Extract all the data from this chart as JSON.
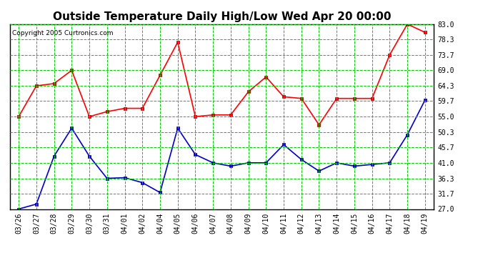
{
  "title": "Outside Temperature Daily High/Low Wed Apr 20 00:00",
  "copyright": "Copyright 2005 Curtronics.com",
  "x_labels": [
    "03/26",
    "03/27",
    "03/28",
    "03/29",
    "03/30",
    "03/31",
    "04/01",
    "04/02",
    "04/04",
    "04/05",
    "04/06",
    "04/07",
    "04/08",
    "04/09",
    "04/10",
    "04/11",
    "04/12",
    "04/13",
    "04/14",
    "04/15",
    "04/16",
    "04/17",
    "04/18",
    "04/19"
  ],
  "high_values": [
    55.0,
    64.3,
    65.0,
    69.0,
    55.0,
    56.5,
    57.5,
    57.5,
    67.5,
    77.5,
    55.0,
    55.5,
    55.5,
    62.5,
    67.0,
    61.0,
    60.5,
    52.5,
    60.5,
    60.5,
    60.5,
    73.7,
    83.0,
    80.5
  ],
  "low_values": [
    27.0,
    28.5,
    43.0,
    51.5,
    43.0,
    36.3,
    36.5,
    35.0,
    32.0,
    51.5,
    43.5,
    41.0,
    40.0,
    41.0,
    41.0,
    46.5,
    42.0,
    38.5,
    41.0,
    40.0,
    40.5,
    41.0,
    49.5,
    60.0
  ],
  "high_color": "#ff0000",
  "low_color": "#0000cc",
  "bg_color": "#ffffff",
  "plot_bg_color": "#ffffff",
  "grid_color": "#00cc00",
  "yticks": [
    27.0,
    31.7,
    36.3,
    41.0,
    45.7,
    50.3,
    55.0,
    59.7,
    64.3,
    69.0,
    73.7,
    78.3,
    83.0
  ],
  "ymin": 27.0,
  "ymax": 83.0,
  "marker": "s",
  "markersize": 3,
  "linewidth": 1.2,
  "title_fontsize": 11,
  "tick_fontsize": 7,
  "copyright_fontsize": 6.5
}
